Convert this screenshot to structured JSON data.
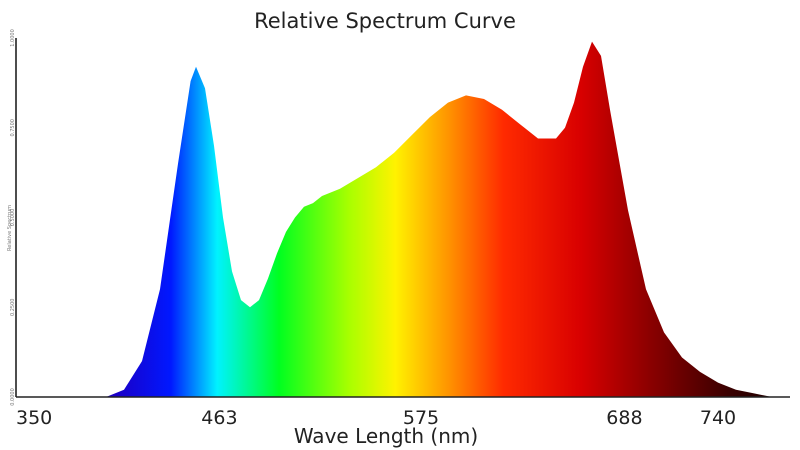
{
  "chart_data": {
    "type": "area",
    "title": "Relative Spectrum Curve",
    "xlabel": "Wave Length (nm)",
    "ylabel": "Relative Spectrum",
    "x_ticks": [
      350,
      463,
      575,
      688,
      740
    ],
    "y_ticks": [
      "0.0000",
      "0.2500",
      "0.5000",
      "0.7500",
      "1.0000"
    ],
    "xlim": [
      350,
      780
    ],
    "ylim": [
      0,
      1.0
    ],
    "grid": false,
    "series": [
      {
        "x": [
          380,
          400,
          410,
          420,
          430,
          440,
          447,
          450,
          455,
          460,
          465,
          470,
          475,
          480,
          485,
          490,
          495,
          500,
          505,
          510,
          515,
          520,
          530,
          540,
          550,
          560,
          570,
          580,
          590,
          600,
          610,
          620,
          630,
          640,
          650,
          655,
          660,
          665,
          670,
          675,
          680,
          690,
          700,
          710,
          720,
          730,
          740,
          750,
          760,
          770,
          780
        ],
        "y": [
          0.0,
          0.0,
          0.02,
          0.1,
          0.3,
          0.65,
          0.88,
          0.92,
          0.86,
          0.7,
          0.5,
          0.35,
          0.27,
          0.25,
          0.27,
          0.33,
          0.4,
          0.46,
          0.5,
          0.53,
          0.54,
          0.56,
          0.58,
          0.61,
          0.64,
          0.68,
          0.73,
          0.78,
          0.82,
          0.84,
          0.83,
          0.8,
          0.76,
          0.72,
          0.72,
          0.75,
          0.82,
          0.92,
          0.99,
          0.95,
          0.8,
          0.52,
          0.3,
          0.18,
          0.11,
          0.07,
          0.04,
          0.02,
          0.01,
          0.0,
          0.0
        ]
      }
    ]
  }
}
